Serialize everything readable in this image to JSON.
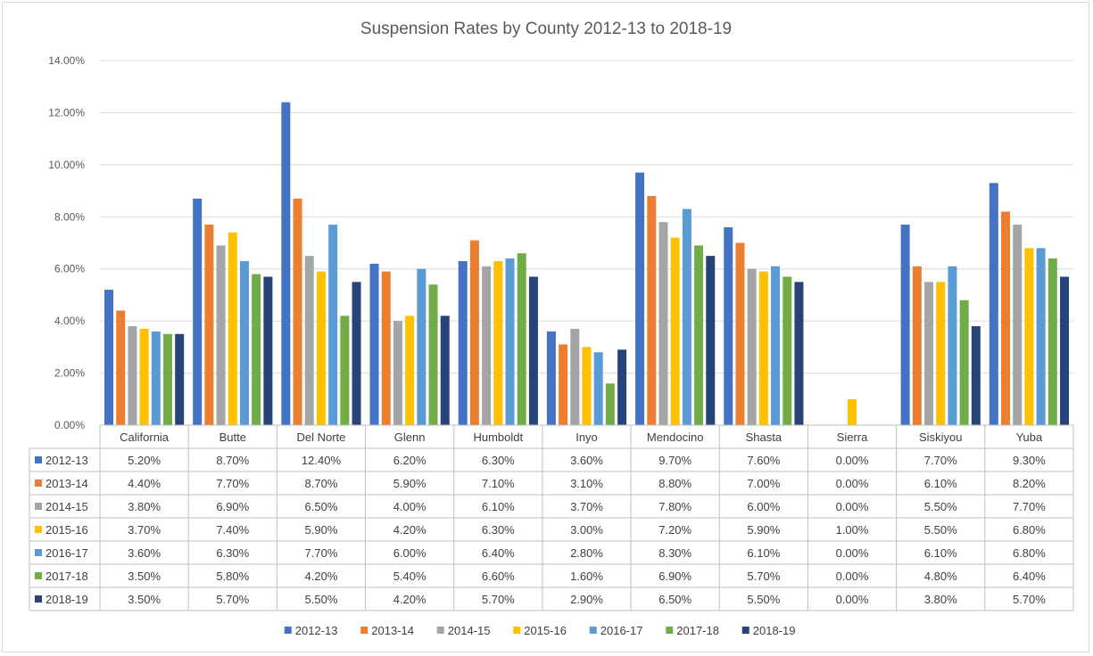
{
  "chart_data": {
    "type": "bar",
    "title": "Suspension Rates by County 2012-13 to 2018-19",
    "xlabel": "",
    "ylabel": "",
    "ylim": [
      0,
      14
    ],
    "yticks": [
      "0.00%",
      "2.00%",
      "4.00%",
      "6.00%",
      "8.00%",
      "10.00%",
      "12.00%",
      "14.00%"
    ],
    "grid": true,
    "legend_position": "bottom",
    "categories": [
      "California",
      "Butte",
      "Del Norte",
      "Glenn",
      "Humboldt",
      "Inyo",
      "Mendocino",
      "Shasta",
      "Sierra",
      "Siskiyou",
      "Yuba"
    ],
    "series": [
      {
        "name": "2012-13",
        "color": "#4472c4",
        "values": [
          5.2,
          8.7,
          12.4,
          6.2,
          6.3,
          3.6,
          9.7,
          7.6,
          0.0,
          7.7,
          9.3
        ],
        "labels": [
          "5.20%",
          "8.70%",
          "12.40%",
          "6.20%",
          "6.30%",
          "3.60%",
          "9.70%",
          "7.60%",
          "0.00%",
          "7.70%",
          "9.30%"
        ]
      },
      {
        "name": "2013-14",
        "color": "#ed7d31",
        "values": [
          4.4,
          7.7,
          8.7,
          5.9,
          7.1,
          3.1,
          8.8,
          7.0,
          0.0,
          6.1,
          8.2
        ],
        "labels": [
          "4.40%",
          "7.70%",
          "8.70%",
          "5.90%",
          "7.10%",
          "3.10%",
          "8.80%",
          "7.00%",
          "0.00%",
          "6.10%",
          "8.20%"
        ]
      },
      {
        "name": "2014-15",
        "color": "#a5a5a5",
        "values": [
          3.8,
          6.9,
          6.5,
          4.0,
          6.1,
          3.7,
          7.8,
          6.0,
          0.0,
          5.5,
          7.7
        ],
        "labels": [
          "3.80%",
          "6.90%",
          "6.50%",
          "4.00%",
          "6.10%",
          "3.70%",
          "7.80%",
          "6.00%",
          "0.00%",
          "5.50%",
          "7.70%"
        ]
      },
      {
        "name": "2015-16",
        "color": "#ffc000",
        "values": [
          3.7,
          7.4,
          5.9,
          4.2,
          6.3,
          3.0,
          7.2,
          5.9,
          1.0,
          5.5,
          6.8
        ],
        "labels": [
          "3.70%",
          "7.40%",
          "5.90%",
          "4.20%",
          "6.30%",
          "3.00%",
          "7.20%",
          "5.90%",
          "1.00%",
          "5.50%",
          "6.80%"
        ]
      },
      {
        "name": "2016-17",
        "color": "#5b9bd5",
        "values": [
          3.6,
          6.3,
          7.7,
          6.0,
          6.4,
          2.8,
          8.3,
          6.1,
          0.0,
          6.1,
          6.8
        ],
        "labels": [
          "3.60%",
          "6.30%",
          "7.70%",
          "6.00%",
          "6.40%",
          "2.80%",
          "8.30%",
          "6.10%",
          "0.00%",
          "6.10%",
          "6.80%"
        ]
      },
      {
        "name": "2017-18",
        "color": "#70ad47",
        "values": [
          3.5,
          5.8,
          4.2,
          5.4,
          6.6,
          1.6,
          6.9,
          5.7,
          0.0,
          4.8,
          6.4
        ],
        "labels": [
          "3.50%",
          "5.80%",
          "4.20%",
          "5.40%",
          "6.60%",
          "1.60%",
          "6.90%",
          "5.70%",
          "0.00%",
          "4.80%",
          "6.40%"
        ]
      },
      {
        "name": "2018-19",
        "color": "#264478",
        "values": [
          3.5,
          5.7,
          5.5,
          4.2,
          5.7,
          2.9,
          6.5,
          5.5,
          0.0,
          3.8,
          5.7
        ],
        "labels": [
          "3.50%",
          "5.70%",
          "5.50%",
          "4.20%",
          "5.70%",
          "2.90%",
          "6.50%",
          "5.50%",
          "0.00%",
          "3.80%",
          "5.70%"
        ]
      }
    ]
  }
}
